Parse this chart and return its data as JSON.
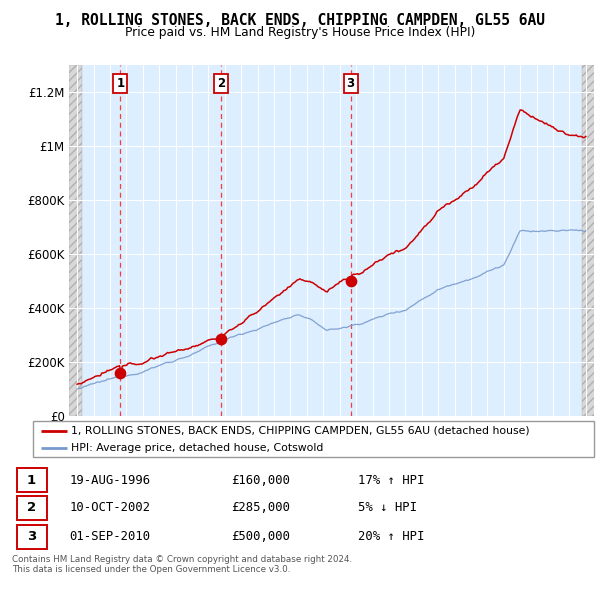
{
  "title": "1, ROLLING STONES, BACK ENDS, CHIPPING CAMPDEN, GL55 6AU",
  "subtitle": "Price paid vs. HM Land Registry's House Price Index (HPI)",
  "property_label": "1, ROLLING STONES, BACK ENDS, CHIPPING CAMPDEN, GL55 6AU (detached house)",
  "hpi_label": "HPI: Average price, detached house, Cotswold",
  "property_color": "#cc0000",
  "hpi_color": "#7799cc",
  "sale_year_floats": [
    1996.63,
    2002.78,
    2010.67
  ],
  "sale_prices": [
    160000,
    285000,
    500000
  ],
  "sale_labels": [
    "1",
    "2",
    "3"
  ],
  "sale_info": [
    {
      "label": "1",
      "date": "19-AUG-1996",
      "price": "£160,000",
      "pct": "17% ↑ HPI"
    },
    {
      "label": "2",
      "date": "10-OCT-2002",
      "price": "£285,000",
      "pct": "5% ↓ HPI"
    },
    {
      "label": "3",
      "date": "01-SEP-2010",
      "price": "£500,000",
      "pct": "20% ↑ HPI"
    }
  ],
  "ylim": [
    0,
    1300000
  ],
  "yticks": [
    0,
    200000,
    400000,
    600000,
    800000,
    1000000,
    1200000
  ],
  "ytick_labels": [
    "£0",
    "£200K",
    "£400K",
    "£600K",
    "£800K",
    "£1M",
    "£1.2M"
  ],
  "bg_color": "#ddeeff",
  "footer": "Contains HM Land Registry data © Crown copyright and database right 2024.\nThis data is licensed under the Open Government Licence v3.0."
}
